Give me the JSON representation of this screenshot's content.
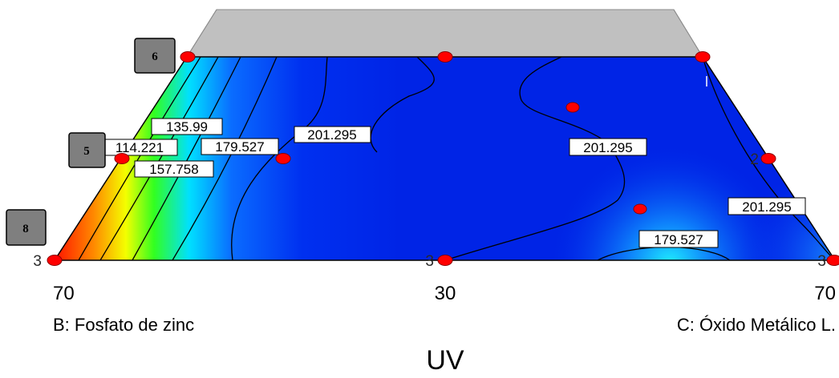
{
  "chart_data": {
    "type": "contour",
    "title": "UV",
    "axes": {
      "left_label": "B: Fosfato de zinc",
      "right_label": "C: Óxido Metálico L.",
      "tick_left": "70",
      "tick_middle": "30",
      "tick_right": "70"
    },
    "contour_levels": [
      114.221,
      135.99,
      157.758,
      179.527,
      201.295
    ],
    "contour_labels": [
      "135.99",
      "114.221",
      "157.758",
      "179.527",
      "201.295",
      "201.295",
      "201.295",
      "179.527"
    ],
    "design_point_tags": [
      "6",
      "5",
      "8"
    ],
    "design_point_counts": [
      "3",
      "3",
      "3",
      "2"
    ],
    "colors": {
      "low": "#ff0000",
      "mid": "#00ff00",
      "high": "#0020ff",
      "infeasible_region": "#c0c0c0",
      "design_point": "#ff0000"
    }
  }
}
